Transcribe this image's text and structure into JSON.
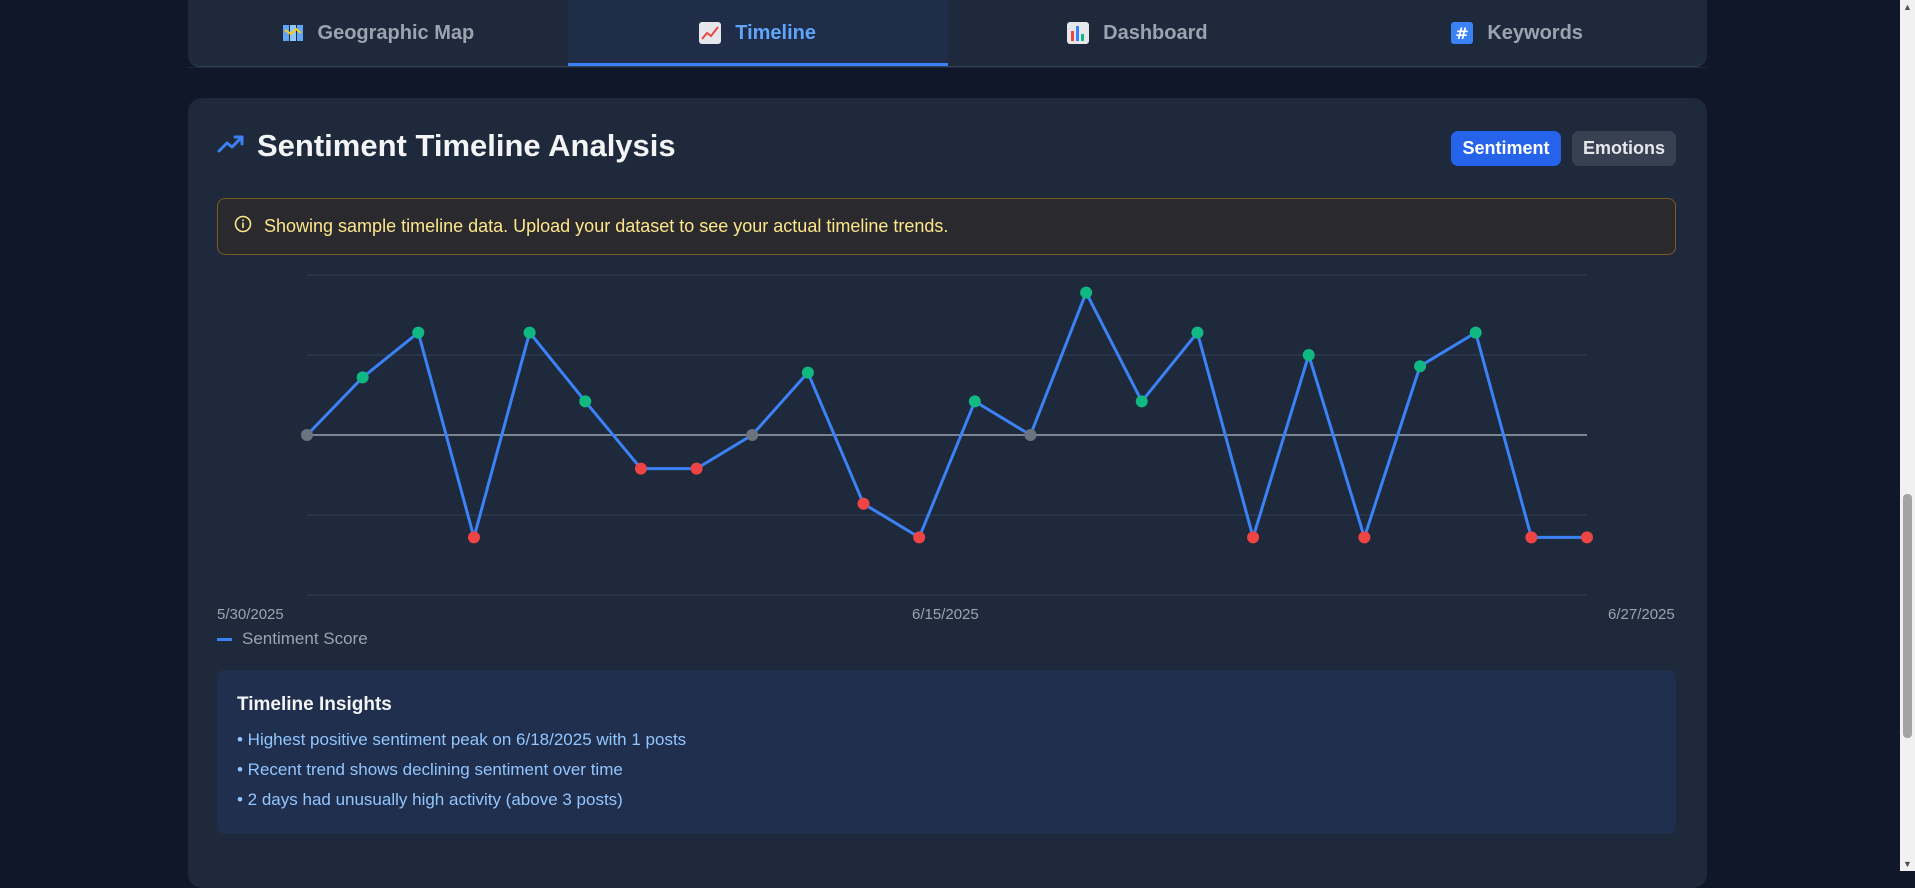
{
  "tabs": [
    {
      "label": "Geographic Map",
      "icon": "map-icon",
      "active": false
    },
    {
      "label": "Timeline",
      "icon": "chart-line-icon",
      "active": true
    },
    {
      "label": "Dashboard",
      "icon": "bar-chart-icon",
      "active": false
    },
    {
      "label": "Keywords",
      "icon": "hashtag-icon",
      "active": false
    }
  ],
  "header": {
    "title": "Sentiment Timeline Analysis",
    "icon": "trending-up-icon"
  },
  "buttons": {
    "sentiment": "Sentiment",
    "emotions": "Emotions"
  },
  "notice": {
    "text": "Showing sample timeline data. Upload your dataset to see your actual timeline trends.",
    "icon": "info-icon"
  },
  "colors": {
    "positive": "#10b981",
    "negative": "#ef4444",
    "neutral": "#6b7280",
    "line": "#3b82f6"
  },
  "chart_data": {
    "type": "line",
    "x_ticks": [
      "5/30/2025",
      "6/15/2025",
      "6/27/2025"
    ],
    "ylim": [
      -1,
      1
    ],
    "grid": true,
    "legend": "bottom-left",
    "series": [
      {
        "name": "Sentiment Score",
        "values": [
          0,
          0.36,
          0.64,
          -0.64,
          0.64,
          0.21,
          -0.21,
          -0.21,
          0,
          0.39,
          -0.43,
          -0.64,
          0.21,
          0,
          0.89,
          0.21,
          0.64,
          -0.64,
          0.5,
          -0.64,
          0.43,
          0.64,
          -0.64,
          -0.64
        ]
      }
    ]
  },
  "legend_label": "Sentiment Score",
  "insights": {
    "title": "Timeline Insights",
    "lines": [
      "• Highest positive sentiment peak on 6/18/2025 with 1 posts",
      "• Recent trend shows declining sentiment over time",
      "• 2 days had unusually high activity (above 3 posts)"
    ]
  }
}
